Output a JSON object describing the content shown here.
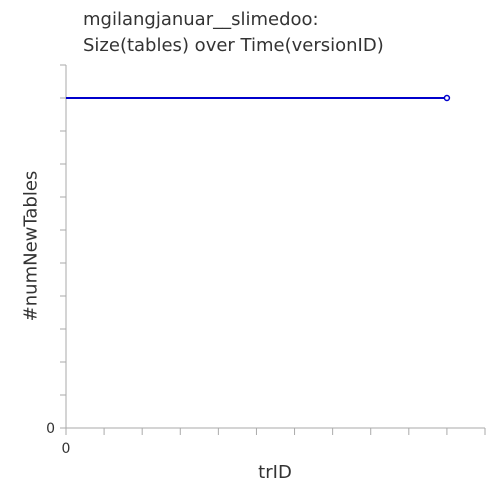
{
  "chart_data": {
    "type": "line",
    "title": [
      "mgilangjanuar__slimedoo:",
      "Size(tables) over Time(versionID)"
    ],
    "xlabel": "trID",
    "ylabel": "#numNewTables",
    "x_tick_labels": [
      "0"
    ],
    "y_tick_labels": [
      "0"
    ],
    "grid": false,
    "series": [
      {
        "color": "#0000cc",
        "points": [
          {
            "x": 0,
            "y": 10,
            "marker": false
          },
          {
            "x": 10,
            "y": 10,
            "marker": true
          }
        ]
      }
    ],
    "xlim": [
      0,
      11
    ],
    "ylim": [
      0,
      11
    ]
  }
}
